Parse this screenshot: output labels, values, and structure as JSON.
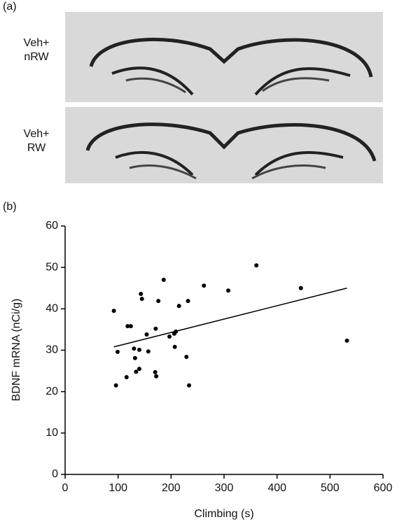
{
  "panel_a": {
    "label": "(a)",
    "rows": [
      {
        "label_lines": [
          "Veh+",
          "nRW"
        ]
      },
      {
        "label_lines": [
          "Veh+",
          "RW"
        ]
      }
    ]
  },
  "chart_data": {
    "type": "scatter",
    "panel_label": "(b)",
    "x_label": "Climbing (s)",
    "y_label": "BDNF mRNA (nCi/g)",
    "xlim": [
      0,
      600
    ],
    "xticks": [
      0,
      100,
      200,
      300,
      400,
      500,
      600
    ],
    "ylim": [
      0,
      60
    ],
    "yticks": [
      0,
      10,
      20,
      30,
      40,
      50,
      60
    ],
    "color": "#000000",
    "x": [
      92,
      99,
      96,
      116,
      118,
      124,
      130,
      132,
      134,
      140,
      140,
      143,
      145,
      154,
      157,
      171,
      170,
      172,
      176,
      186,
      197,
      206,
      207,
      209,
      215,
      229,
      232,
      234,
      262,
      308,
      361,
      445,
      532
    ],
    "y": [
      39.5,
      29.6,
      21.5,
      23.5,
      35.8,
      35.8,
      30.4,
      28.1,
      24.8,
      30.1,
      25.5,
      43.6,
      42.4,
      33.8,
      29.7,
      35.2,
      24.7,
      23.7,
      41.9,
      47.0,
      33.3,
      34.0,
      30.8,
      34.5,
      40.7,
      28.4,
      41.9,
      21.5,
      45.6,
      44.4,
      50.5,
      45.0,
      32.3
    ],
    "fit_line": {
      "x": [
        92,
        532
      ],
      "y": [
        30.8,
        45.0
      ]
    }
  }
}
